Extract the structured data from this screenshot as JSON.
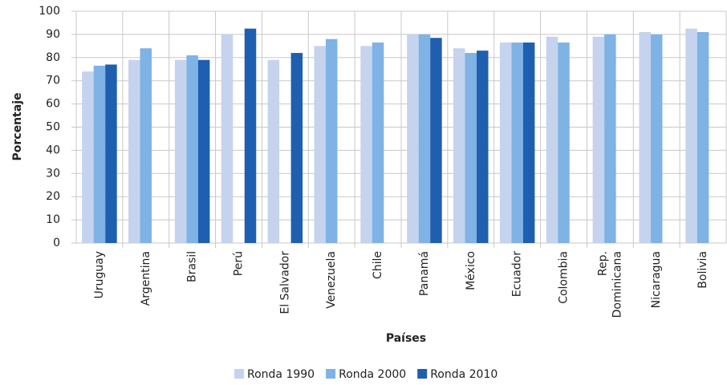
{
  "chart_data": {
    "type": "bar",
    "x_label": "Países",
    "y_label": "Porcentaje",
    "categories": [
      "Uruguay",
      "Argentina",
      "Brasil",
      "Perú",
      "El Salvador",
      "Venezuela",
      "Chile",
      "Panamá",
      "México",
      "Ecuador",
      "Colombia",
      "Rep. Dominicana",
      "Nicaragua",
      "Bolivia"
    ],
    "series": [
      {
        "name": "Ronda 1990",
        "color": "#c5d3ee",
        "values": [
          74,
          79,
          79,
          90,
          79,
          85,
          85,
          90,
          84,
          86.5,
          89,
          89,
          91,
          92.5
        ]
      },
      {
        "name": "Ronda 2000",
        "color": "#7fb2e5",
        "values": [
          76.5,
          84,
          81,
          null,
          null,
          88,
          86.5,
          90,
          82,
          86.5,
          86.5,
          90,
          90,
          91
        ]
      },
      {
        "name": "Ronda 2010",
        "color": "#1f5fb0",
        "values": [
          77,
          null,
          79,
          92.5,
          82,
          null,
          null,
          88.5,
          83,
          86.5,
          null,
          null,
          null,
          null
        ]
      }
    ],
    "ylim": [
      0,
      100
    ],
    "yticks": [
      0,
      10,
      20,
      30,
      40,
      50,
      60,
      70,
      80,
      90,
      100
    ],
    "grid": true,
    "legend": "bottom"
  }
}
